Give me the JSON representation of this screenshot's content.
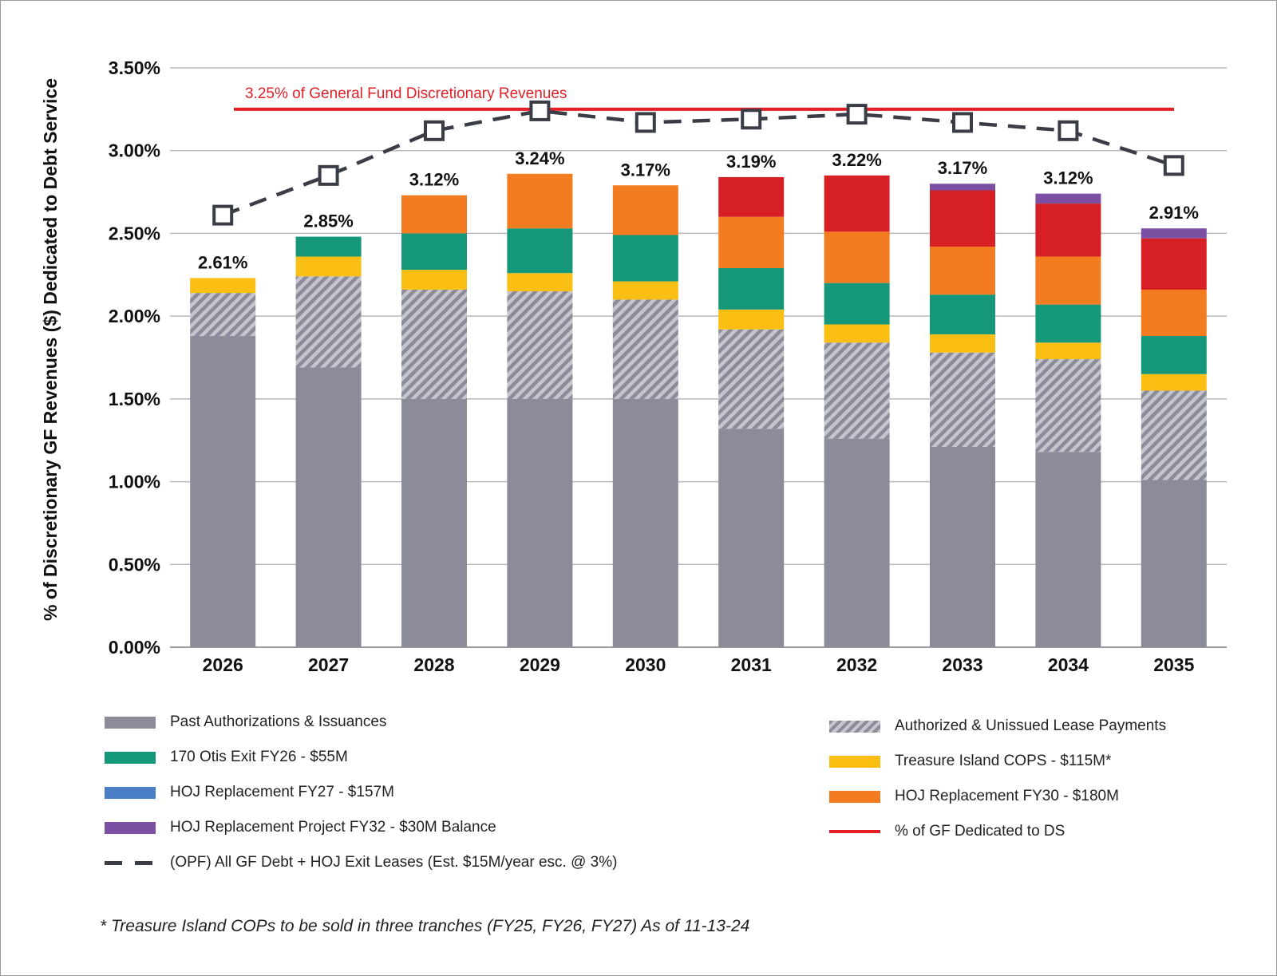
{
  "chart_data": {
    "type": "bar",
    "stacked": true,
    "categories": [
      "2026",
      "2027",
      "2028",
      "2029",
      "2030",
      "2031",
      "2032",
      "2033",
      "2034",
      "2035"
    ],
    "ylabel": "% of Discretionary GF Revenues ($) Dedicated to Debt Service",
    "xlabel": "",
    "ylim": [
      0,
      3.5
    ],
    "yticks": [
      "0.00%",
      "0.50%",
      "1.00%",
      "1.50%",
      "2.00%",
      "2.50%",
      "3.00%",
      "3.50%"
    ],
    "grid": true,
    "series": [
      {
        "name": "Past Authorizations & Issuances",
        "color": "#8b8b99",
        "pattern": "solid",
        "values": [
          1.88,
          1.69,
          1.5,
          1.5,
          1.5,
          1.32,
          1.26,
          1.21,
          1.18,
          1.01
        ]
      },
      {
        "name": "Authorized & Unissued Lease Payments",
        "color": "#8b8b99",
        "pattern": "hatch",
        "values": [
          0.26,
          0.55,
          0.66,
          0.65,
          0.6,
          0.6,
          0.58,
          0.57,
          0.56,
          0.54
        ]
      },
      {
        "name": "Treasure Island COPS - $115M*",
        "color": "#fbbf14",
        "pattern": "solid",
        "values": [
          0.09,
          0.12,
          0.12,
          0.11,
          0.11,
          0.12,
          0.11,
          0.11,
          0.1,
          0.1
        ]
      },
      {
        "name": "170 Otis Exit FY26 - $55M",
        "color": "#15977a",
        "pattern": "solid",
        "values": [
          0.0,
          0.12,
          0.22,
          0.27,
          0.28,
          0.25,
          0.25,
          0.24,
          0.23,
          0.23
        ]
      },
      {
        "name": "HOJ Replacement FY27 - $157M",
        "color": "#4a7fc6",
        "pattern": "solid",
        "values": [
          0,
          0,
          0,
          0,
          0,
          0,
          0,
          0,
          0,
          0
        ]
      },
      {
        "name": "HOJ Replacement FY30 - $180M",
        "color": "#f47c20",
        "pattern": "solid",
        "values": [
          0.0,
          0.0,
          0.23,
          0.33,
          0.3,
          0.31,
          0.31,
          0.29,
          0.29,
          0.28
        ]
      },
      {
        "name": "% of GF Dedicated to DS",
        "color": "#d71f26",
        "pattern": "solid",
        "values": [
          0.0,
          0.0,
          0.0,
          0.0,
          0.0,
          0.24,
          0.34,
          0.34,
          0.32,
          0.31
        ]
      },
      {
        "name": "HOJ Replacement Project FY32 - $30M Balance",
        "color": "#7b4fa2",
        "pattern": "solid",
        "values": [
          0.0,
          0.0,
          0.0,
          0.0,
          0.0,
          0.0,
          0.0,
          0.04,
          0.06,
          0.06
        ]
      }
    ],
    "opf_line": {
      "name": "(OPF) All GF Debt + HOJ Exit Leases (Est. $15M/year esc. @ 3%)",
      "color": "#3a3d46",
      "values": [
        2.61,
        2.85,
        3.12,
        3.24,
        3.17,
        3.19,
        3.22,
        3.17,
        3.12,
        2.91
      ]
    },
    "value_labels": [
      "2.61%",
      "2.85%",
      "3.12%",
      "3.24%",
      "3.17%",
      "3.19%",
      "3.22%",
      "3.17%",
      "3.12%",
      "2.91%"
    ],
    "threshold": {
      "value": 3.25,
      "label": "3.25% of General Fund Discretionary Revenues",
      "color": "#e41f26"
    }
  },
  "legend": {
    "left": [
      {
        "label": "Past Authorizations & Issuances",
        "color": "#8b8b99",
        "style": "solid"
      },
      {
        "label": "170 Otis Exit FY26 - $55M",
        "color": "#15977a",
        "style": "solid"
      },
      {
        "label": "HOJ Replacement FY27 - $157M",
        "color": "#4a7fc6",
        "style": "solid"
      },
      {
        "label": "HOJ Replacement Project FY32 - $30M Balance",
        "color": "#7b4fa2",
        "style": "solid"
      },
      {
        "label": "(OPF) All GF Debt + HOJ Exit Leases (Est. $15M/year esc. @ 3%)",
        "color": "#3a3d46",
        "style": "dash"
      }
    ],
    "right": [
      {
        "label": "Authorized & Unissued Lease Payments",
        "color": "#8b8b99",
        "style": "hatch"
      },
      {
        "label": "Treasure Island COPS - $115M*",
        "color": "#fbbf14",
        "style": "solid"
      },
      {
        "label": "HOJ Replacement FY30 - $180M",
        "color": "#f47c20",
        "style": "solid"
      },
      {
        "label": "% of GF Dedicated to DS",
        "color": "#e41f26",
        "style": "line"
      }
    ]
  },
  "footnote": "* Treasure Island COPs to be sold in three tranches (FY25, FY26, FY27) As of 11-13-24"
}
